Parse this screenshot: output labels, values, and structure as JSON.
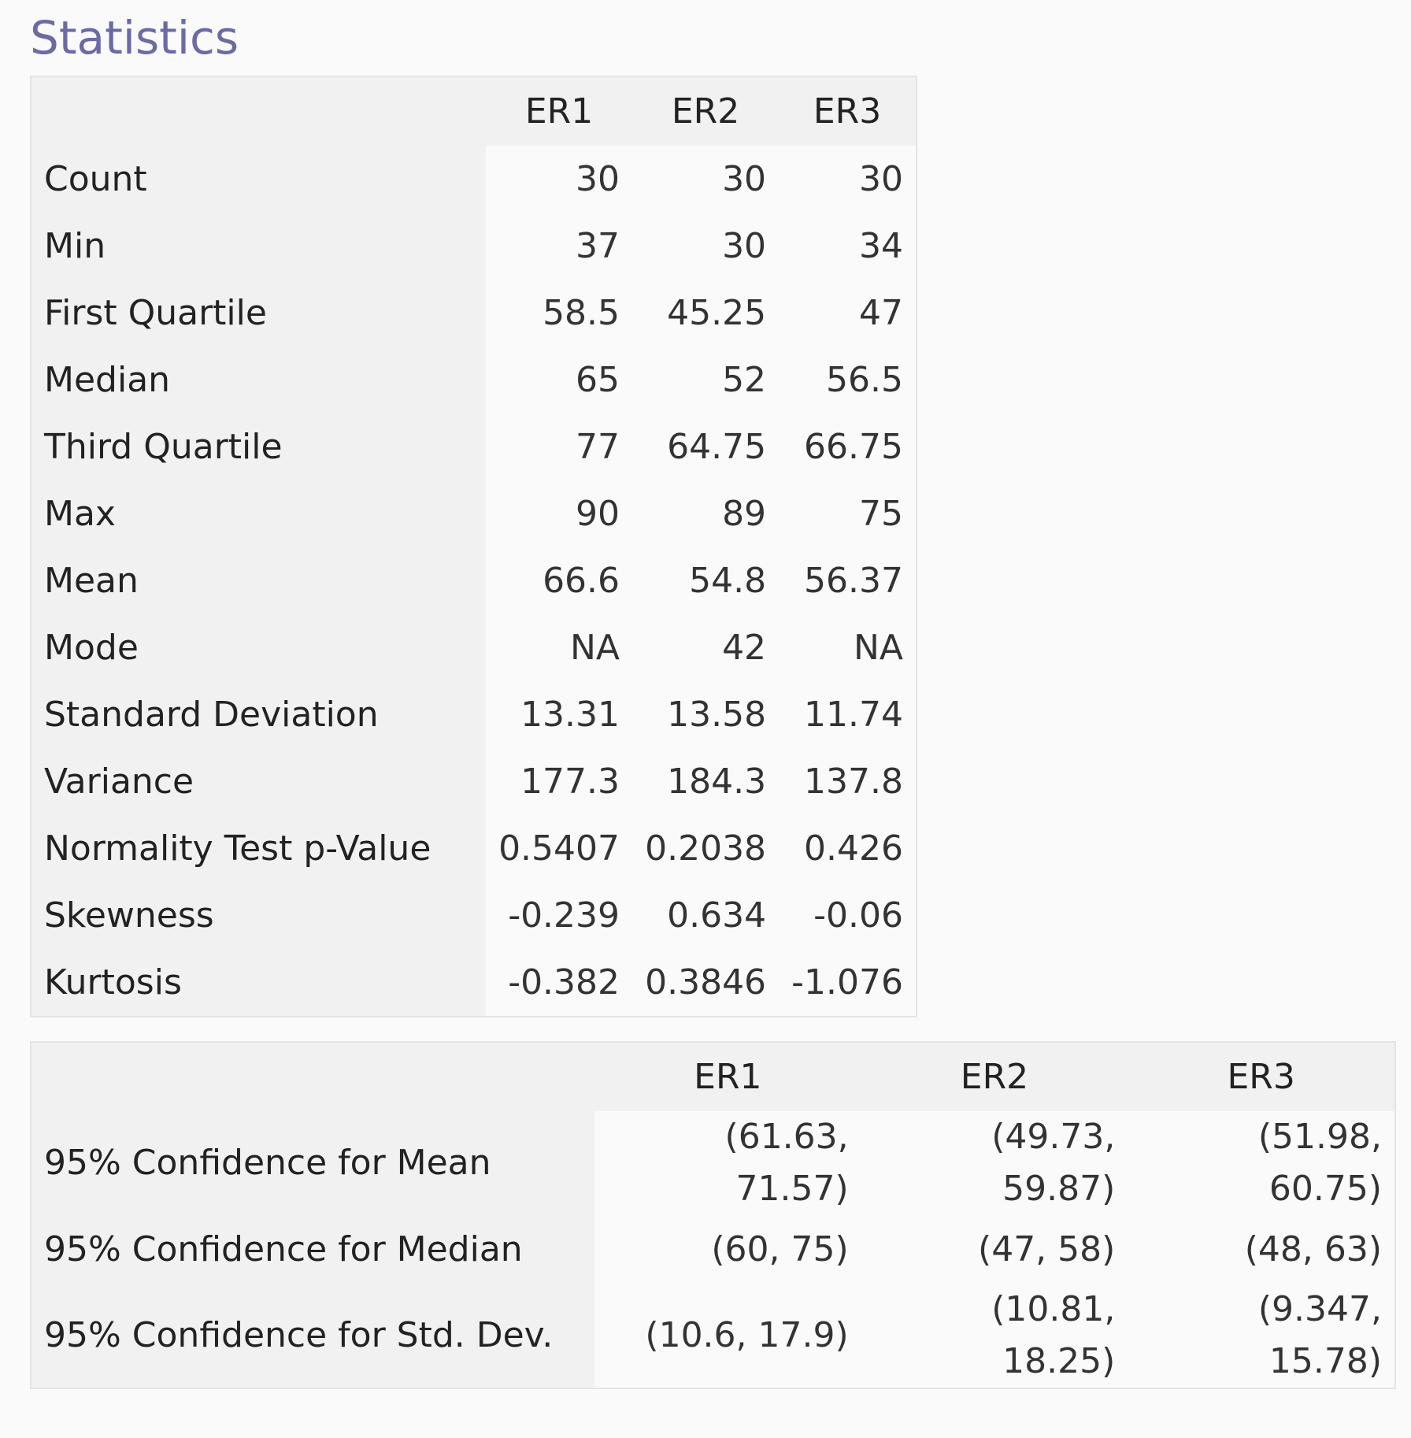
{
  "title": "Statistics",
  "summary_table": {
    "columns": [
      "ER1",
      "ER2",
      "ER3"
    ],
    "rows": [
      {
        "label": "Count",
        "cells": [
          "30",
          "30",
          "30"
        ]
      },
      {
        "label": "Min",
        "cells": [
          "37",
          "30",
          "34"
        ]
      },
      {
        "label": "First Quartile",
        "cells": [
          "58.5",
          "45.25",
          "47"
        ]
      },
      {
        "label": "Median",
        "cells": [
          "65",
          "52",
          "56.5"
        ]
      },
      {
        "label": "Third Quartile",
        "cells": [
          "77",
          "64.75",
          "66.75"
        ]
      },
      {
        "label": "Max",
        "cells": [
          "90",
          "89",
          "75"
        ]
      },
      {
        "label": "Mean",
        "cells": [
          "66.6",
          "54.8",
          "56.37"
        ]
      },
      {
        "label": "Mode",
        "cells": [
          "NA",
          "42",
          "NA"
        ]
      },
      {
        "label": "Standard Deviation",
        "cells": [
          "13.31",
          "13.58",
          "11.74"
        ]
      },
      {
        "label": "Variance",
        "cells": [
          "177.3",
          "184.3",
          "137.8"
        ]
      },
      {
        "label": "Normality Test p-Value",
        "cells": [
          "0.5407",
          "0.2038",
          "0.426"
        ]
      },
      {
        "label": "Skewness",
        "cells": [
          "-0.239",
          "0.634",
          "-0.06"
        ]
      },
      {
        "label": "Kurtosis",
        "cells": [
          "-0.382",
          "0.3846",
          "-1.076"
        ]
      }
    ]
  },
  "confidence_table": {
    "columns": [
      "ER1",
      "ER2",
      "ER3"
    ],
    "rows": [
      {
        "label": "95% Confidence for Mean",
        "cells": [
          "(61.63, 71.57)",
          "(49.73, 59.87)",
          "(51.98, 60.75)"
        ]
      },
      {
        "label": "95% Confidence for Median",
        "cells": [
          "(60, 75)",
          "(47, 58)",
          "(48, 63)"
        ]
      },
      {
        "label": "95% Confidence for Std. Dev.",
        "cells": [
          "(10.6, 17.9)",
          "(10.81, 18.25)",
          "(9.347, 15.78)"
        ]
      }
    ]
  }
}
